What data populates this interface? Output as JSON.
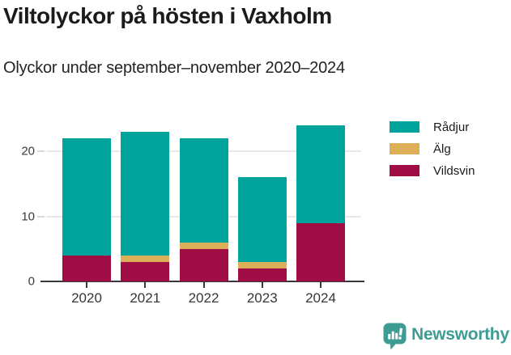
{
  "title": "Viltolyckor på hösten i Vaxholm",
  "subtitle": "Olyckor under september–november 2020–2024",
  "chart_data": {
    "type": "bar",
    "stacked": true,
    "title": "Viltolyckor på hösten i Vaxholm",
    "subtitle": "Olyckor under september–november 2020–2024",
    "categories": [
      "2020",
      "2021",
      "2022",
      "2023",
      "2024"
    ],
    "series": [
      {
        "name": "Rådjur",
        "color": "#00a49c",
        "values": [
          18,
          19,
          16,
          13,
          15
        ]
      },
      {
        "name": "Älg",
        "color": "#dcaf58",
        "values": [
          0,
          1,
          1,
          1,
          0
        ]
      },
      {
        "name": "Vildsvin",
        "color": "#a00d45",
        "values": [
          4,
          3,
          5,
          2,
          9
        ]
      }
    ],
    "stack_order_bottom_to_top": [
      "Vildsvin",
      "Älg",
      "Rådjur"
    ],
    "totals": [
      22,
      23,
      22,
      16,
      24
    ],
    "xlabel": "",
    "ylabel": "",
    "yticks": [
      0,
      10,
      20
    ],
    "ylim": [
      0,
      24
    ],
    "grid": true,
    "legend_position": "right",
    "colors": {
      "axis_line": "#3a3a3a",
      "grid_line": "#e8e8e8",
      "tick_text": "#3a3a3a",
      "background": "#ffffff"
    }
  },
  "footer": {
    "brand": "Newsworthy",
    "brand_color": "#3f9c95"
  }
}
